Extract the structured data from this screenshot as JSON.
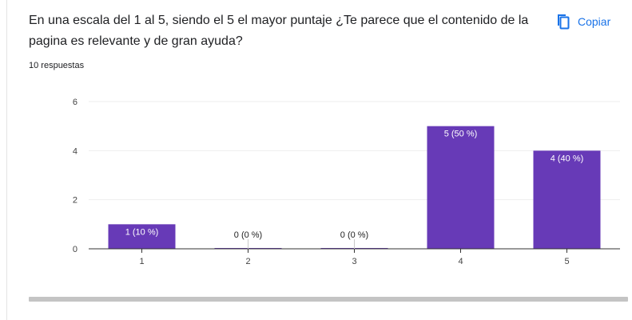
{
  "question": {
    "title": "En una escala del 1 al 5, siendo el 5 el mayor puntaje ¿Te parece que el contenido de la pagina es relevante y de gran ayuda?",
    "responses": "10 respuestas"
  },
  "copy_button": {
    "label": "Copiar",
    "icon": "copy-icon"
  },
  "colors": {
    "bar": "#673ab7",
    "grid": "#eeeeee",
    "axis": "#333333",
    "accent": "#1a73e8"
  },
  "chart_data": {
    "type": "bar",
    "categories": [
      "1",
      "2",
      "3",
      "4",
      "5"
    ],
    "values": [
      1,
      0,
      0,
      5,
      4
    ],
    "data_labels": [
      "1 (10 %)",
      "0 (0 %)",
      "0 (0 %)",
      "5 (50 %)",
      "4 (40 %)"
    ],
    "ylim": [
      0,
      6
    ],
    "yticks": [
      0,
      2,
      4,
      6
    ],
    "grid": true,
    "title": "",
    "xlabel": "",
    "ylabel": ""
  }
}
